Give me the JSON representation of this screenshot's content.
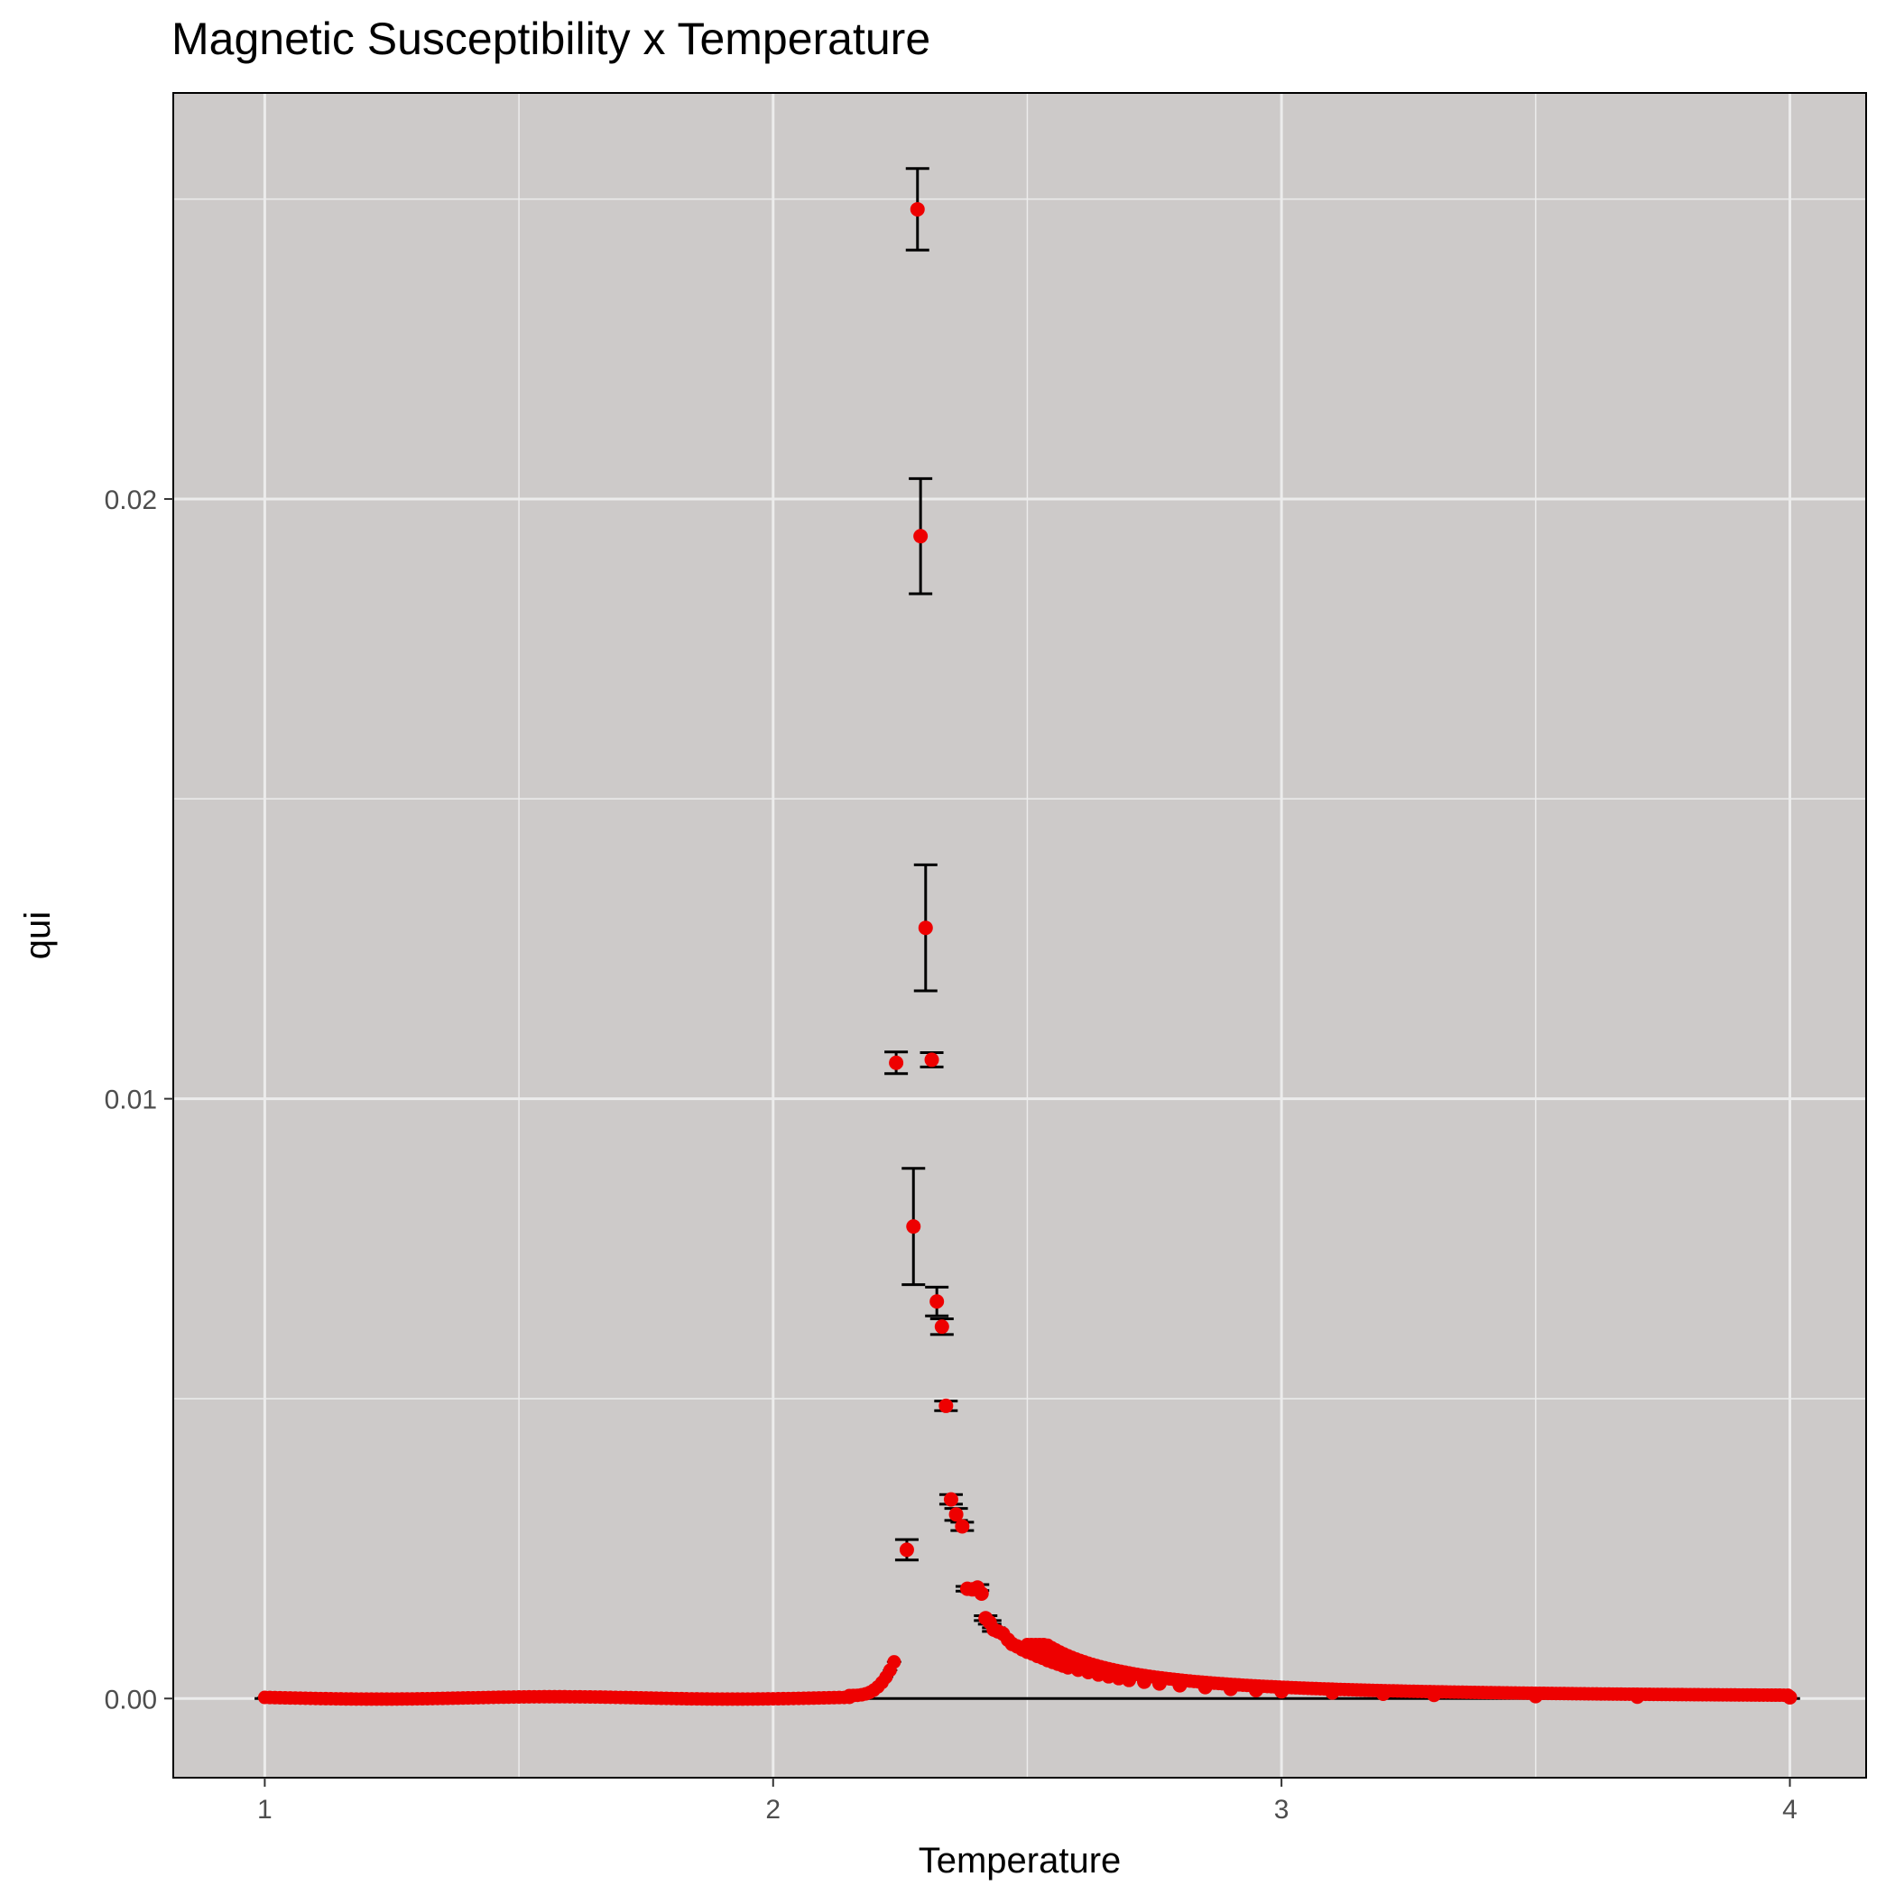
{
  "chart_data": {
    "type": "scatter",
    "title": "Magnetic Susceptibility x Temperature",
    "xlabel": "Temperature",
    "ylabel": "qui",
    "xlim": [
      0.82,
      4.15
    ],
    "ylim": [
      -0.00132,
      0.02677
    ],
    "x_ticks": [
      1,
      2,
      3,
      4
    ],
    "x_tick_labels": [
      "1",
      "2",
      "3",
      "4"
    ],
    "y_ticks": [
      0,
      0.01,
      0.02
    ],
    "y_tick_labels": [
      "0.00",
      "0.01",
      "0.02"
    ],
    "y_minor": [
      0.005,
      0.015,
      0.025
    ],
    "x_minor": [
      1.5,
      2.5,
      3.5
    ],
    "grid": true,
    "colors": {
      "panel": "#cdcac9",
      "grid": "#ececec",
      "point": "#ee0000",
      "errorbar": "#000000"
    },
    "series": [
      {
        "marker": "point",
        "points": [
          [
            2.242,
            0.0106
          ],
          [
            2.263,
            0.00248
          ],
          [
            2.276,
            0.00787
          ],
          [
            2.284,
            0.02483
          ],
          [
            2.29,
            0.01938
          ],
          [
            2.3,
            0.01285
          ],
          [
            2.312,
            0.01065
          ],
          [
            2.322,
            0.00662
          ],
          [
            2.332,
            0.0062
          ],
          [
            2.34,
            0.00488
          ],
          [
            2.35,
            0.00332
          ],
          [
            2.36,
            0.00307
          ],
          [
            2.372,
            0.00287
          ],
          [
            2.382,
            0.00183
          ],
          [
            2.392,
            0.00182
          ],
          [
            2.402,
            0.00185
          ],
          [
            2.41,
            0.00175
          ],
          [
            2.418,
            0.00134
          ],
          [
            2.426,
            0.00127
          ],
          [
            2.434,
            0.00115
          ],
          [
            2.442,
            0.00112
          ],
          [
            2.452,
            0.00108
          ],
          [
            2.462,
            0.00098
          ],
          [
            2.47,
            0.00091
          ],
          [
            2.48,
            0.00087
          ],
          [
            2.49,
            0.00082
          ],
          [
            2.5,
            0.00078
          ],
          [
            2.51,
            0.00075
          ],
          [
            2.52,
            0.00071
          ],
          [
            2.53,
            0.00068
          ],
          [
            2.54,
            0.00064
          ],
          [
            2.55,
            0.00061
          ],
          [
            2.56,
            0.00058
          ],
          [
            2.57,
            0.00055
          ],
          [
            2.58,
            0.00052
          ],
          [
            2.6,
            0.00048
          ],
          [
            2.62,
            0.00044
          ],
          [
            2.64,
            0.0004
          ],
          [
            2.66,
            0.00037
          ],
          [
            2.68,
            0.00034
          ],
          [
            2.7,
            0.00031
          ],
          [
            2.73,
            0.00028
          ],
          [
            2.76,
            0.00025
          ],
          [
            2.8,
            0.00022
          ],
          [
            2.85,
            0.00019
          ],
          [
            2.9,
            0.00016
          ],
          [
            2.95,
            0.00014
          ],
          [
            3.0,
            0.00012
          ],
          [
            3.1,
            0.0001
          ],
          [
            3.2,
            8e-05
          ],
          [
            3.3,
            6e-05
          ],
          [
            3.5,
            4e-05
          ],
          [
            3.7,
            3e-05
          ],
          [
            4.0,
            2e-05
          ]
        ],
        "errors": [
          [
            2.242,
            0.0106,
            0.00018
          ],
          [
            2.263,
            0.00248,
            0.00017
          ],
          [
            2.276,
            0.00787,
            0.00097
          ],
          [
            2.284,
            0.02483,
            0.00068
          ],
          [
            2.29,
            0.01938,
            0.00096
          ],
          [
            2.3,
            0.01285,
            0.00105
          ],
          [
            2.312,
            0.01065,
            0.00012
          ],
          [
            2.322,
            0.00662,
            0.00024
          ],
          [
            2.332,
            0.0062,
            0.00013
          ],
          [
            2.34,
            0.00488,
            8e-05
          ],
          [
            2.35,
            0.00332,
            8e-05
          ],
          [
            2.36,
            0.00307,
            0.0001
          ],
          [
            2.372,
            0.00287,
            7e-05
          ],
          [
            2.382,
            0.00183,
            4e-05
          ],
          [
            2.392,
            0.00182,
            4e-05
          ],
          [
            2.402,
            0.00185,
            5e-05
          ],
          [
            2.418,
            0.00134,
            4e-05
          ],
          [
            2.426,
            0.00127,
            3e-05
          ],
          [
            2.434,
            0.00115,
            3e-05
          ]
        ],
        "low_t_baseline": 2e-05
      }
    ]
  }
}
